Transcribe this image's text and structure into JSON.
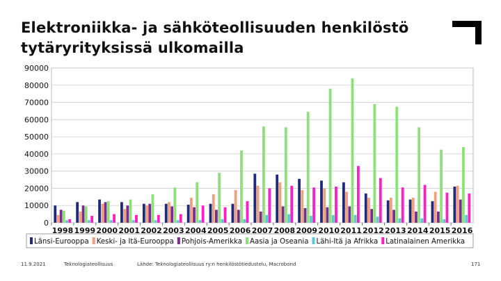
{
  "slide": {
    "title_line1": "Elektroniikka- ja sähköteollisuuden henkilöstö",
    "title_line2": "tytäryrityksissä ulkomailla"
  },
  "footer": {
    "date": "11.9.2021",
    "org": "Teknologiateollisuus",
    "source": "Lähde: Teknologiateollisuus ry:n henkilöstötiedustelu, Macrobond",
    "page": "171"
  },
  "colors": {
    "logo": "#000000"
  },
  "chart_data": {
    "type": "bar",
    "categories": [
      "1998",
      "1999",
      "2000",
      "2001",
      "2002",
      "2003",
      "2004",
      "2005",
      "2006",
      "2007",
      "2008",
      "2009",
      "2010",
      "2011",
      "2012",
      "2013",
      "2014",
      "2015",
      "2016"
    ],
    "ylim": [
      0,
      90000
    ],
    "yticks": [
      0,
      10000,
      20000,
      30000,
      40000,
      50000,
      60000,
      70000,
      80000,
      90000
    ],
    "ytick_labels": [
      "0",
      "10000",
      "20000",
      "30000",
      "40000",
      "50000",
      "60000",
      "70000",
      "80000",
      "90000"
    ],
    "grid": true,
    "legend_position": "bottom",
    "series": [
      {
        "name": "Länsi-Eurooppa",
        "color": "#1f2a7a",
        "values": [
          10000,
          12000,
          13500,
          12000,
          11000,
          11000,
          10500,
          11000,
          11000,
          28500,
          28000,
          25500,
          24500,
          23500,
          17000,
          13000,
          13500,
          12500,
          21000
        ]
      },
      {
        "name": "Keski- ja Itä-Eurooppa",
        "color": "#f0a080",
        "values": [
          4500,
          6500,
          11000,
          8000,
          10000,
          12000,
          14500,
          16500,
          19000,
          21500,
          23500,
          19000,
          20000,
          18000,
          14500,
          14500,
          14500,
          18000,
          21500
        ]
      },
      {
        "name": "Pohjois-Amerikka",
        "color": "#7b2d8c",
        "values": [
          7500,
          10000,
          12000,
          10000,
          11000,
          9500,
          9000,
          7500,
          7500,
          6500,
          9500,
          8500,
          9000,
          9500,
          8000,
          7500,
          6500,
          6500,
          13500
        ]
      },
      {
        "name": "Aasia ja Oseania",
        "color": "#8ee07a",
        "values": [
          7000,
          9500,
          12500,
          13500,
          16500,
          20500,
          23500,
          29000,
          42000,
          56000,
          55500,
          64500,
          78000,
          84000,
          69000,
          67500,
          55500,
          42500,
          44000
        ]
      },
      {
        "name": "Lähi-Itä ja Afrikka",
        "color": "#5cc8d0",
        "values": [
          1500,
          1500,
          1500,
          1500,
          1500,
          1500,
          1500,
          2000,
          2000,
          4500,
          5000,
          4000,
          4500,
          4500,
          3500,
          2500,
          2500,
          2000,
          4500
        ]
      },
      {
        "name": "Latinalainen Amerikka",
        "color": "#ff1fc8",
        "values": [
          2000,
          4000,
          5000,
          4500,
          4500,
          5000,
          10000,
          9000,
          12500,
          20000,
          21500,
          20500,
          21000,
          33000,
          26000,
          20500,
          22000,
          17500,
          17000
        ]
      }
    ]
  }
}
